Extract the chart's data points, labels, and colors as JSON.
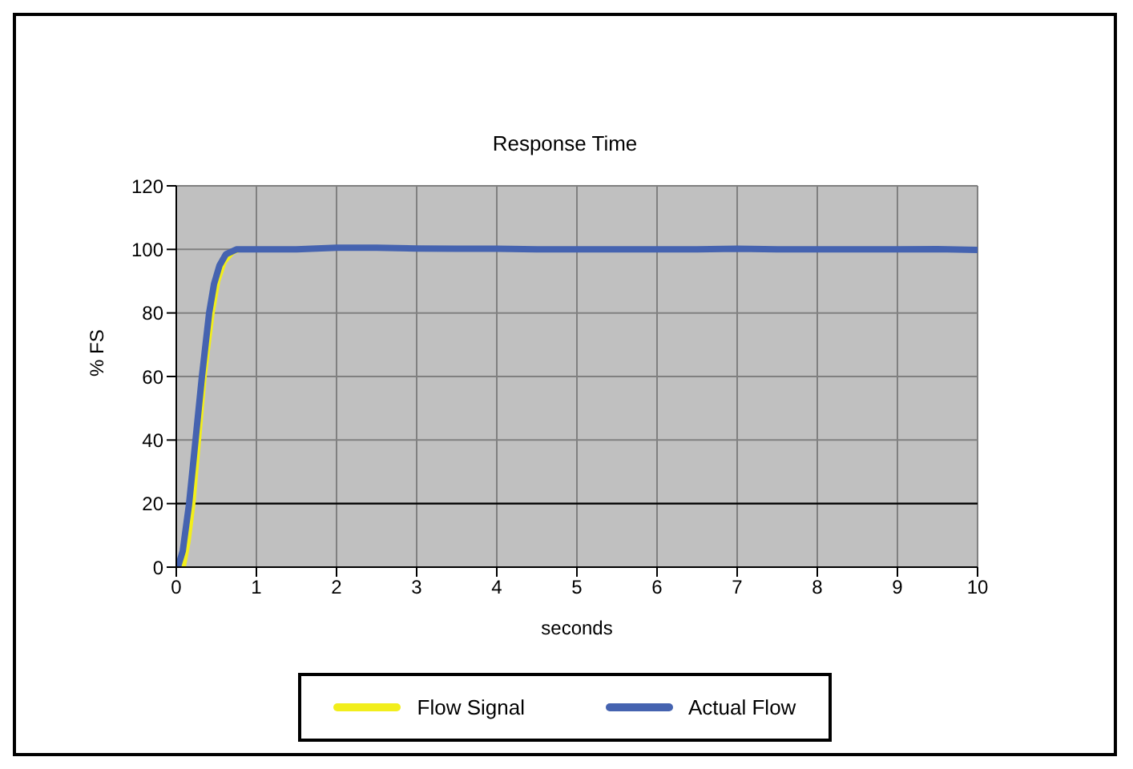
{
  "chart_data": {
    "type": "line",
    "title": "Response Time",
    "xlabel": "seconds",
    "ylabel": "% FS",
    "xlim": [
      0,
      10
    ],
    "xticks": [
      0,
      1,
      2,
      3,
      4,
      5,
      6,
      7,
      8,
      9,
      10
    ],
    "ylim": [
      0,
      120
    ],
    "yticks": [
      0,
      20,
      40,
      60,
      80,
      100,
      120
    ],
    "grid": true,
    "legend": "bottom",
    "marker": "none",
    "line_style": "solid",
    "ref_lines": [
      {
        "axis": "y",
        "value": 20,
        "color": "#000000"
      }
    ],
    "series": [
      {
        "name": "Flow Signal",
        "color": "#f2ee1c",
        "x": [
          0.09,
          0.15,
          0.21,
          0.28,
          0.35,
          0.4,
          0.45,
          0.52,
          0.6,
          0.7,
          0.8
        ],
        "values": [
          0,
          8,
          20,
          40,
          60,
          70,
          80,
          90,
          96,
          99,
          100
        ]
      },
      {
        "name": "Actual Flow",
        "color": "#4563b0",
        "x": [
          0,
          0.02,
          0.08,
          0.16,
          0.24,
          0.32,
          0.41,
          0.47,
          0.54,
          0.62,
          0.75,
          1,
          1.5,
          2,
          2.5,
          3,
          3.5,
          4,
          4.5,
          5,
          5.5,
          6,
          6.5,
          7,
          7.5,
          8,
          8.5,
          9,
          9.5,
          10
        ],
        "values": [
          0,
          0,
          5,
          20,
          40,
          60,
          80,
          89,
          95,
          98.5,
          100,
          100,
          100,
          100.5,
          100.5,
          100.3,
          100.2,
          100.2,
          100,
          100,
          100,
          100,
          100,
          100.2,
          100,
          100,
          100,
          100,
          100.1,
          99.8
        ]
      }
    ]
  }
}
